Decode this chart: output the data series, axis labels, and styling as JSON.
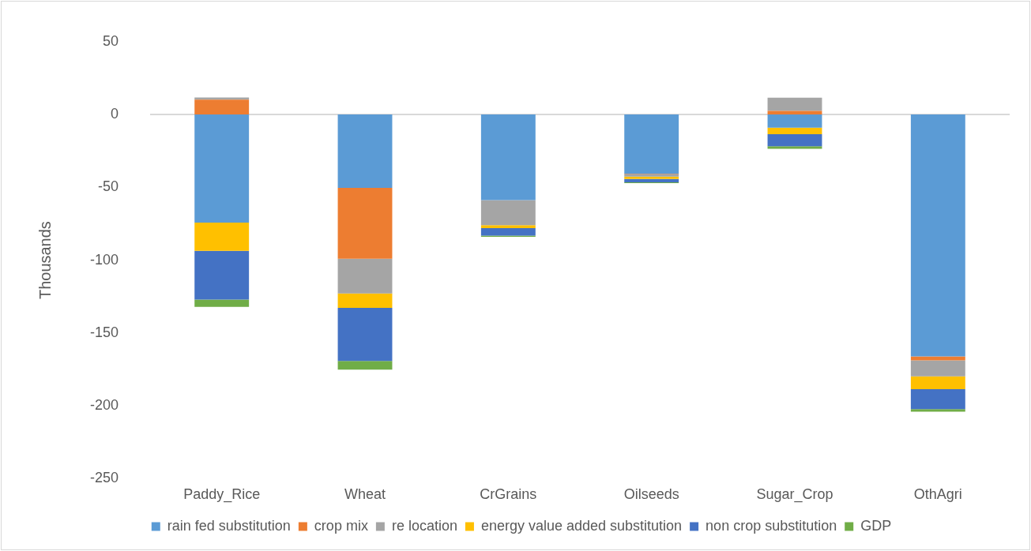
{
  "chart_data": {
    "type": "bar",
    "stacked": true,
    "ylabel": "Thousands",
    "categories": [
      "Paddy_Rice",
      "Wheat",
      "CrGrains",
      "Oilseeds",
      "Sugar_Crop",
      "OthAgri"
    ],
    "series": [
      {
        "name": "rain fed substitution",
        "color": "#5b9bd5",
        "values": [
          -74.2,
          -50.3,
          -58.8,
          -40.7,
          -9.1,
          -166
        ]
      },
      {
        "name": "crop mix",
        "color": "#ed7d31",
        "values": [
          10.2,
          -48.7,
          0,
          -0.5,
          2.5,
          -2.8
        ]
      },
      {
        "name": "re location",
        "color": "#a5a5a5",
        "values": [
          1.5,
          -23.8,
          -17.1,
          -1.5,
          9,
          -10.9
        ]
      },
      {
        "name": "energy value added substitution",
        "color": "#ffc000",
        "values": [
          -19.4,
          -9.9,
          -2.1,
          -1.5,
          -4.4,
          -8.9
        ]
      },
      {
        "name": "non crop substitution",
        "color": "#4472c4",
        "values": [
          -33.4,
          -36.5,
          -5.2,
          -2.3,
          -8.3,
          -13.6
        ]
      },
      {
        "name": "GDP",
        "color": "#70ad47",
        "values": [
          -5,
          -6,
          -0.8,
          -0.6,
          -1.7,
          -1.8
        ]
      }
    ],
    "ylim": [
      -250,
      50
    ],
    "yticks": [
      -250,
      -200,
      -150,
      -100,
      -50,
      0,
      50
    ],
    "grid": false,
    "ref_lines": [
      {
        "axis": "y",
        "value": 0,
        "color": "#d9d9d9"
      }
    ],
    "legend": "bottom"
  }
}
